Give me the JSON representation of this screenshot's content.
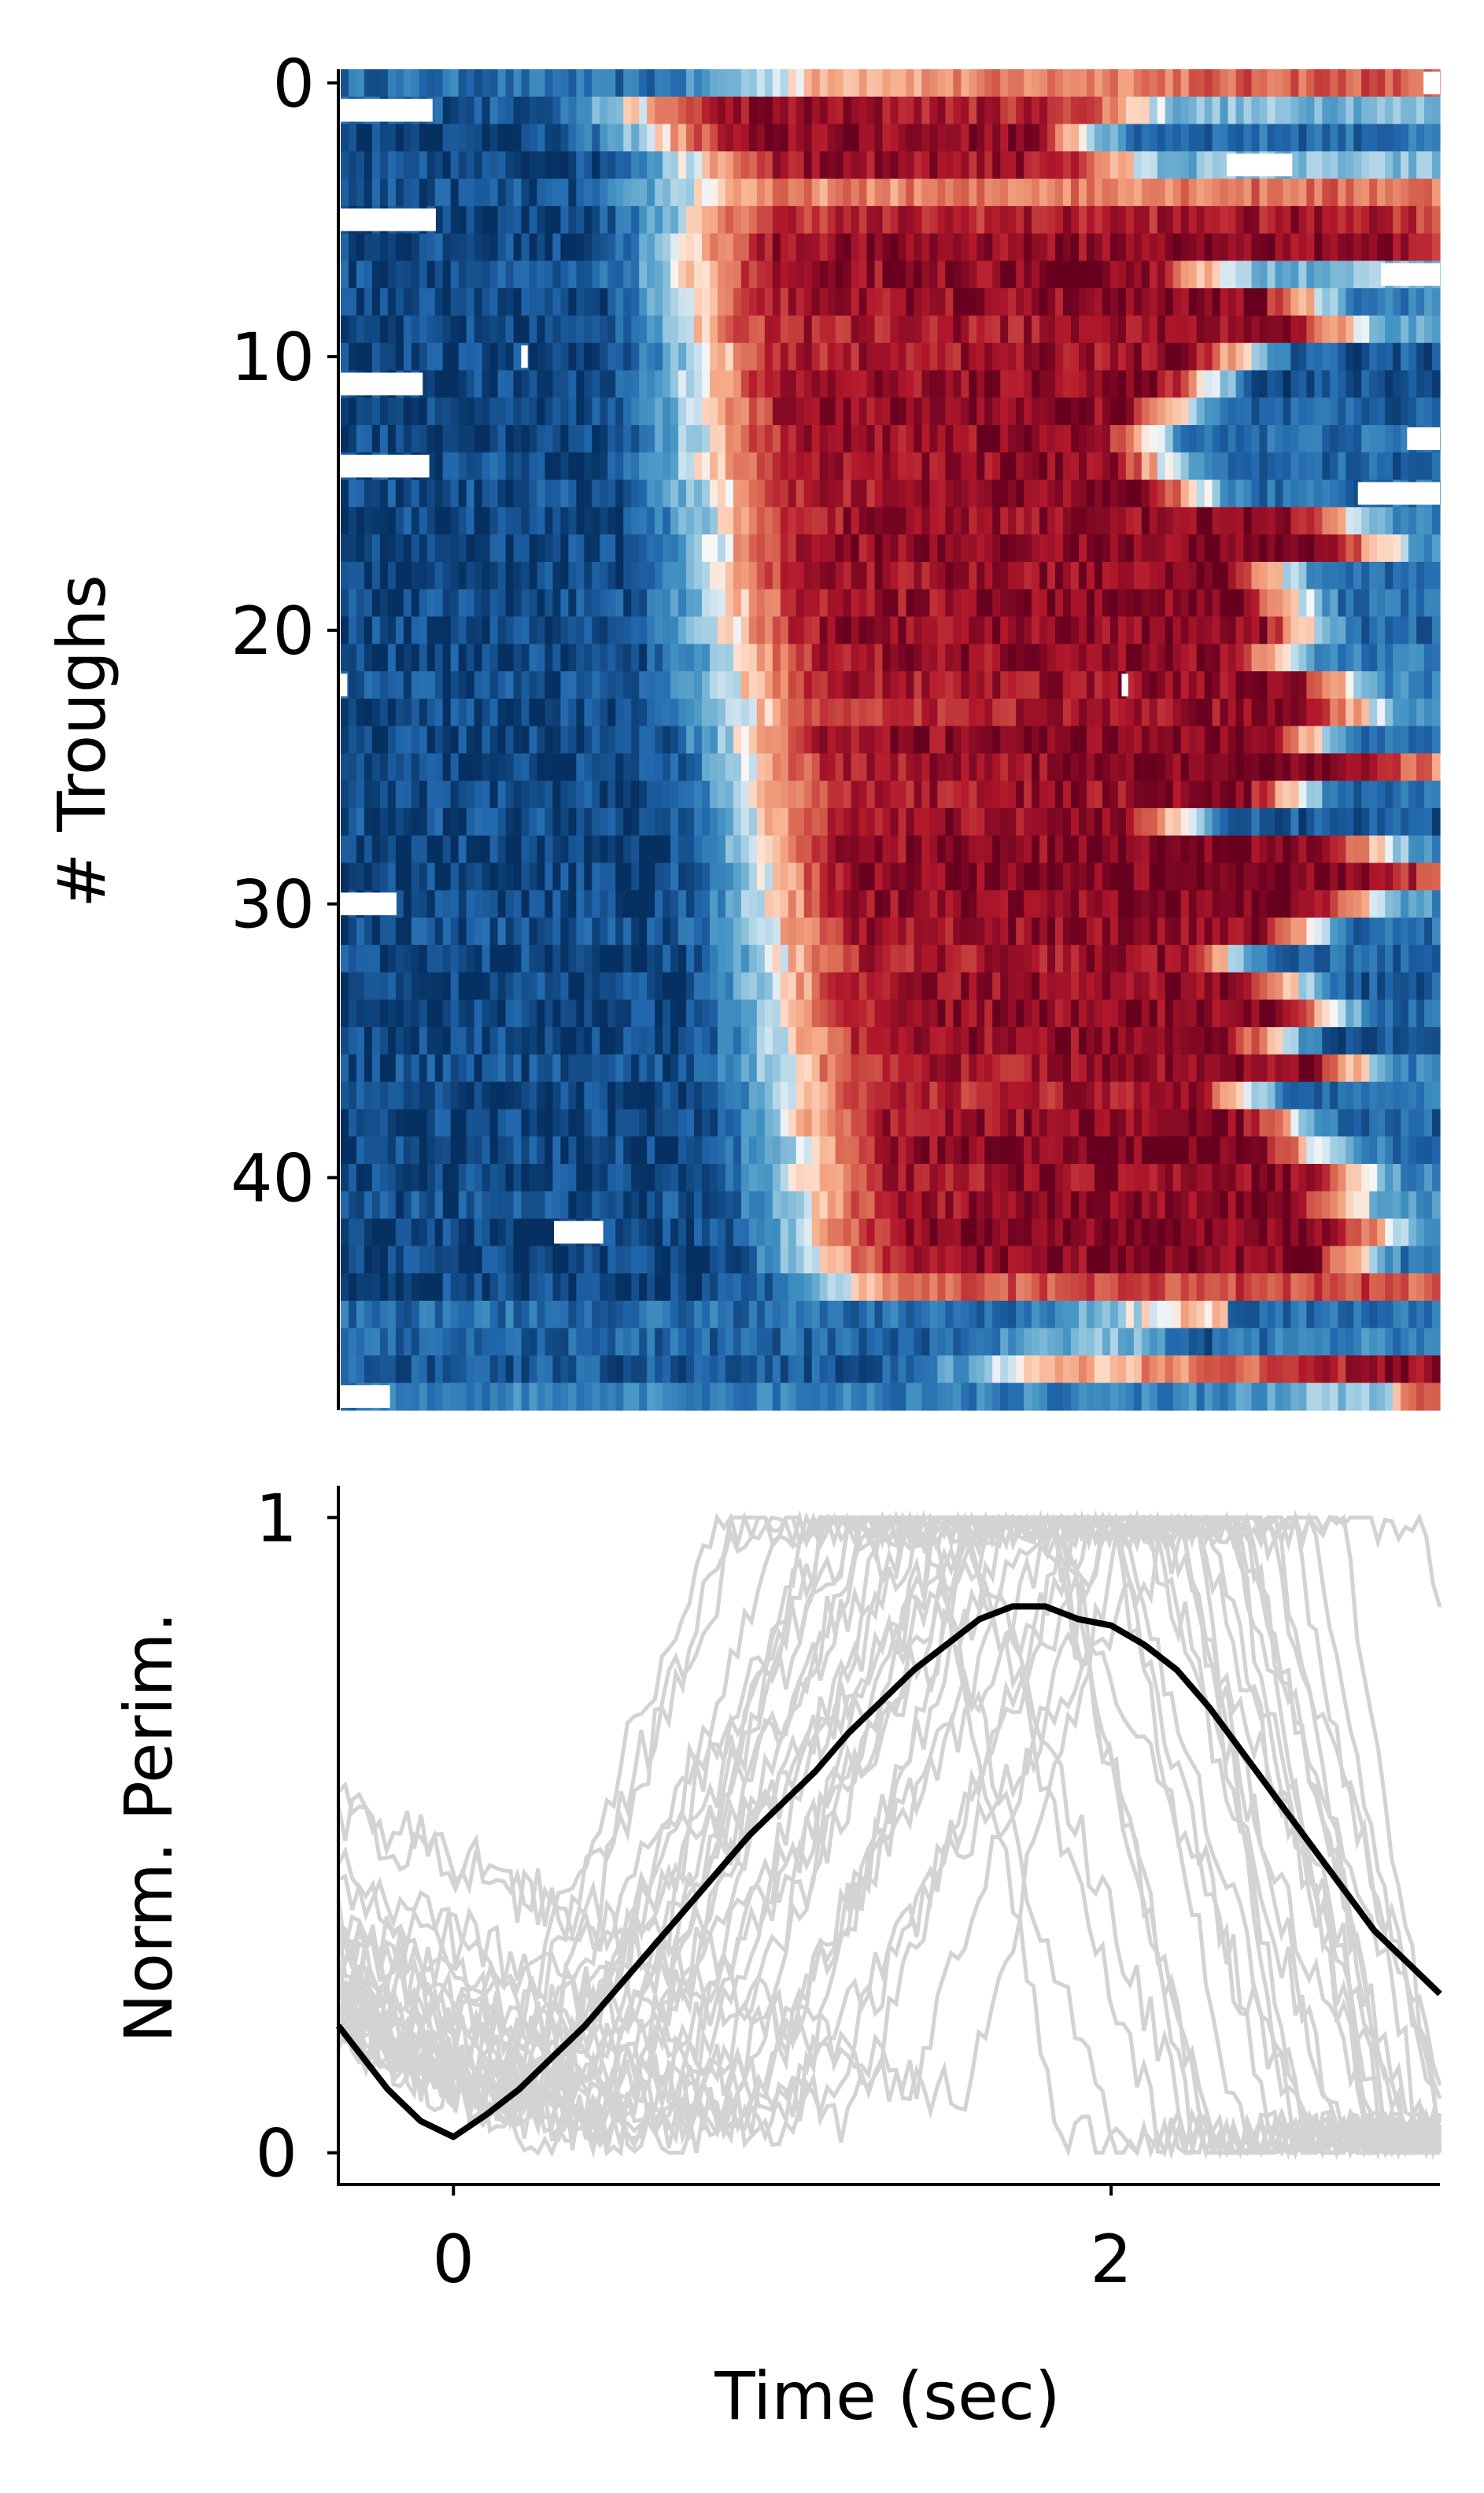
{
  "chart_data": [
    {
      "type": "heatmap",
      "ylabel": "# Troughs",
      "xlabel": "",
      "yticks": [
        "0",
        "10",
        "20",
        "30",
        "40"
      ],
      "ytick_values": [
        0,
        10,
        20,
        30,
        40
      ],
      "ylim": [
        -0.5,
        48.5
      ],
      "xlim": [
        -0.35,
        3.0
      ],
      "n_rows": 49,
      "colormap": "RdBu_r",
      "colors": {
        "low": "#053061",
        "mid": "#f7f7f7",
        "high": "#67001f"
      },
      "rows": [
        {
          "row": 0,
          "onset": 0.9,
          "offset": 2.9,
          "levels": [
            -0.7,
            0.28,
            0.55,
            0.4
          ]
        },
        {
          "row": 1,
          "onset": 0.55,
          "offset": 2.05,
          "levels": [
            -0.8,
            0.85,
            0.7,
            -0.3
          ]
        },
        {
          "row": 2,
          "onset": 0.6,
          "offset": 1.9,
          "levels": [
            -0.9,
            0.85,
            0.9,
            -0.7
          ]
        },
        {
          "row": 3,
          "onset": 0.7,
          "offset": 2.0,
          "levels": [
            -0.9,
            0.8,
            0.8,
            -0.3
          ]
        },
        {
          "row": 4,
          "onset": 0.65,
          "offset": 2.9,
          "levels": [
            -0.85,
            0.35,
            0.45,
            0.4
          ]
        },
        {
          "row": 5,
          "onset": 0.7,
          "offset": 2.95,
          "levels": [
            -0.9,
            0.7,
            0.8,
            0.5
          ]
        },
        {
          "row": 6,
          "onset": 0.7,
          "offset": 2.95,
          "levels": [
            -0.9,
            0.85,
            0.9,
            0.6
          ]
        },
        {
          "row": 7,
          "onset": 0.7,
          "offset": 2.25,
          "levels": [
            -0.85,
            0.8,
            0.95,
            -0.3
          ]
        },
        {
          "row": 8,
          "onset": 0.72,
          "offset": 2.6,
          "levels": [
            -0.9,
            0.8,
            0.9,
            -0.6
          ]
        },
        {
          "row": 9,
          "onset": 0.7,
          "offset": 2.7,
          "levels": [
            -0.9,
            0.75,
            0.85,
            -0.4
          ]
        },
        {
          "row": 10,
          "onset": 0.75,
          "offset": 2.4,
          "levels": [
            -0.9,
            0.75,
            0.85,
            -0.8
          ]
        },
        {
          "row": 11,
          "onset": 0.72,
          "offset": 2.3,
          "levels": [
            -0.9,
            0.8,
            0.9,
            -0.85
          ]
        },
        {
          "row": 12,
          "onset": 0.75,
          "offset": 2.2,
          "levels": [
            -0.9,
            0.85,
            0.9,
            -0.8
          ]
        },
        {
          "row": 13,
          "onset": 0.75,
          "offset": 2.1,
          "levels": [
            -0.9,
            0.8,
            0.9,
            -0.7
          ]
        },
        {
          "row": 14,
          "onset": 0.75,
          "offset": 2.15,
          "levels": [
            -0.85,
            0.8,
            0.9,
            -0.75
          ]
        },
        {
          "row": 15,
          "onset": 0.78,
          "offset": 2.25,
          "levels": [
            -0.85,
            0.75,
            0.95,
            -0.7
          ]
        },
        {
          "row": 16,
          "onset": 0.8,
          "offset": 2.7,
          "levels": [
            -0.9,
            0.8,
            0.9,
            -0.6
          ]
        },
        {
          "row": 17,
          "onset": 0.8,
          "offset": 2.8,
          "levels": [
            -0.9,
            0.85,
            0.95,
            -0.5
          ]
        },
        {
          "row": 18,
          "onset": 0.8,
          "offset": 2.5,
          "levels": [
            -0.9,
            0.8,
            0.9,
            -0.7
          ]
        },
        {
          "row": 19,
          "onset": 0.82,
          "offset": 2.55,
          "levels": [
            -0.85,
            0.8,
            0.95,
            -0.7
          ]
        },
        {
          "row": 20,
          "onset": 0.82,
          "offset": 2.6,
          "levels": [
            -0.9,
            0.85,
            0.9,
            -0.75
          ]
        },
        {
          "row": 21,
          "onset": 0.85,
          "offset": 2.5,
          "levels": [
            -0.9,
            0.8,
            0.9,
            -0.65
          ]
        },
        {
          "row": 22,
          "onset": 0.85,
          "offset": 2.7,
          "levels": [
            -0.85,
            0.75,
            0.9,
            -0.6
          ]
        },
        {
          "row": 23,
          "onset": 0.87,
          "offset": 2.75,
          "levels": [
            -0.9,
            0.7,
            0.85,
            -0.5
          ]
        },
        {
          "row": 24,
          "onset": 0.87,
          "offset": 2.6,
          "levels": [
            -0.9,
            0.85,
            0.95,
            -0.7
          ]
        },
        {
          "row": 25,
          "onset": 0.9,
          "offset": 2.85,
          "levels": [
            -0.9,
            0.8,
            0.95,
            0.3
          ]
        },
        {
          "row": 26,
          "onset": 0.9,
          "offset": 2.55,
          "levels": [
            -0.9,
            0.75,
            0.9,
            -0.75
          ]
        },
        {
          "row": 27,
          "onset": 0.92,
          "offset": 2.2,
          "levels": [
            -0.85,
            0.8,
            0.9,
            -0.8
          ]
        },
        {
          "row": 28,
          "onset": 0.92,
          "offset": 2.8,
          "levels": [
            -0.9,
            0.85,
            0.95,
            -0.6
          ]
        },
        {
          "row": 29,
          "onset": 0.95,
          "offset": 2.9,
          "levels": [
            -0.9,
            0.9,
            0.95,
            0.5
          ]
        },
        {
          "row": 30,
          "onset": 0.95,
          "offset": 2.75,
          "levels": [
            -0.9,
            0.85,
            0.95,
            -0.5
          ]
        },
        {
          "row": 31,
          "onset": 0.95,
          "offset": 2.6,
          "levels": [
            -0.85,
            0.8,
            0.9,
            -0.7
          ]
        },
        {
          "row": 32,
          "onset": 0.97,
          "offset": 2.35,
          "levels": [
            -0.9,
            0.75,
            0.85,
            -0.75
          ]
        },
        {
          "row": 33,
          "onset": 0.97,
          "offset": 2.55,
          "levels": [
            -0.9,
            0.8,
            0.9,
            -0.8
          ]
        },
        {
          "row": 34,
          "onset": 1.0,
          "offset": 2.65,
          "levels": [
            -0.9,
            0.85,
            0.9,
            -0.7
          ]
        },
        {
          "row": 35,
          "onset": 1.0,
          "offset": 2.5,
          "levels": [
            -0.9,
            0.8,
            0.95,
            -0.85
          ]
        },
        {
          "row": 36,
          "onset": 1.0,
          "offset": 2.75,
          "levels": [
            -0.85,
            0.75,
            0.9,
            -0.6
          ]
        },
        {
          "row": 37,
          "onset": 1.02,
          "offset": 2.4,
          "levels": [
            -0.9,
            0.7,
            0.8,
            -0.7
          ]
        },
        {
          "row": 38,
          "onset": 1.02,
          "offset": 2.55,
          "levels": [
            -0.9,
            0.8,
            0.9,
            -0.75
          ]
        },
        {
          "row": 39,
          "onset": 1.05,
          "offset": 2.6,
          "levels": [
            -0.9,
            0.85,
            0.95,
            -0.65
          ]
        },
        {
          "row": 40,
          "onset": 1.05,
          "offset": 2.75,
          "levels": [
            -0.9,
            0.8,
            0.9,
            -0.6
          ]
        },
        {
          "row": 41,
          "onset": 1.07,
          "offset": 2.7,
          "levels": [
            -0.85,
            0.8,
            0.95,
            -0.5
          ]
        },
        {
          "row": 42,
          "onset": 1.07,
          "offset": 2.8,
          "levels": [
            -0.9,
            0.85,
            0.95,
            -0.4
          ]
        },
        {
          "row": 43,
          "onset": 1.1,
          "offset": 2.75,
          "levels": [
            -0.9,
            0.85,
            0.95,
            -0.7
          ]
        },
        {
          "row": 44,
          "onset": 1.15,
          "offset": 2.95,
          "levels": [
            -0.9,
            0.5,
            0.6,
            0.4
          ]
        },
        {
          "row": 45,
          "onset": 2.0,
          "offset": 2.1,
          "levels": [
            -0.7,
            0.2,
            -0.85,
            -0.7
          ]
        },
        {
          "row": 46,
          "onset": 1.7,
          "offset": 2.4,
          "levels": [
            -0.75,
            -0.3,
            -0.8,
            -0.6
          ]
        },
        {
          "row": 47,
          "onset": 1.6,
          "offset": 2.7,
          "levels": [
            -0.8,
            0.2,
            0.6,
            0.85
          ]
        },
        {
          "row": 48,
          "onset": 2.5,
          "offset": 3.0,
          "levels": [
            -0.6,
            -0.2,
            0.2,
            0.85
          ]
        }
      ]
    },
    {
      "type": "line",
      "xlabel": "Time (sec)",
      "ylabel": "Norm. Perim.",
      "xlim": [
        -0.35,
        3.0
      ],
      "ylim": [
        -0.05,
        1.05
      ],
      "xticks": [
        "0",
        "2"
      ],
      "xtick_values": [
        0,
        2
      ],
      "yticks": [
        "0",
        "1"
      ],
      "ytick_values": [
        0,
        1
      ],
      "colors": {
        "mean": "#000000",
        "individual": "#d3d3d3"
      },
      "mean_trace": {
        "x": [
          -0.35,
          -0.2,
          -0.1,
          0.0,
          0.1,
          0.2,
          0.3,
          0.4,
          0.5,
          0.6,
          0.7,
          0.8,
          0.9,
          1.0,
          1.1,
          1.2,
          1.3,
          1.4,
          1.5,
          1.6,
          1.7,
          1.8,
          1.9,
          2.0,
          2.1,
          2.2,
          2.3,
          2.4,
          2.5,
          2.6,
          2.7,
          2.8,
          2.9,
          3.0
        ],
        "y": [
          0.2,
          0.1,
          0.05,
          0.025,
          0.06,
          0.1,
          0.15,
          0.2,
          0.26,
          0.32,
          0.38,
          0.44,
          0.5,
          0.55,
          0.6,
          0.66,
          0.71,
          0.76,
          0.8,
          0.84,
          0.86,
          0.86,
          0.84,
          0.83,
          0.8,
          0.76,
          0.7,
          0.63,
          0.56,
          0.49,
          0.42,
          0.35,
          0.3,
          0.25
        ]
      },
      "individual_traces": [
        {
          "onset": 0.2,
          "peak": 1.0,
          "rise": 0.65,
          "hold": 0.6,
          "fall": 0.4,
          "base": 0.05
        },
        {
          "onset": 0.3,
          "peak": 1.0,
          "rise": 0.7,
          "hold": 0.8,
          "fall": 0.5,
          "base": 0.02
        },
        {
          "onset": 0.1,
          "peak": 1.0,
          "rise": 0.8,
          "hold": 0.5,
          "fall": 0.6,
          "base": 0.08
        },
        {
          "onset": 0.4,
          "peak": 1.0,
          "rise": 0.75,
          "hold": 0.7,
          "fall": 0.4,
          "base": 0.03
        },
        {
          "onset": 0.25,
          "peak": 1.0,
          "rise": 0.9,
          "hold": 0.4,
          "fall": 0.7,
          "base": 0.06
        },
        {
          "onset": 0.5,
          "peak": 1.0,
          "rise": 0.6,
          "hold": 0.9,
          "fall": 0.5,
          "base": 0.01
        },
        {
          "onset": 0.15,
          "peak": 1.0,
          "rise": 1.1,
          "hold": 0.3,
          "fall": 0.6,
          "base": 0.1
        },
        {
          "onset": 0.6,
          "peak": 1.0,
          "rise": 0.8,
          "hold": 0.6,
          "fall": 0.4,
          "base": 0.02
        },
        {
          "onset": 0.35,
          "peak": 1.0,
          "rise": 0.95,
          "hold": 0.5,
          "fall": 0.8,
          "base": 0.04
        },
        {
          "onset": 0.8,
          "peak": 1.0,
          "rise": 0.7,
          "hold": 0.7,
          "fall": 0.5,
          "base": 0.03
        },
        {
          "onset": 0.45,
          "peak": 1.0,
          "rise": 1.0,
          "hold": 0.8,
          "fall": 0.3,
          "base": 0.05
        },
        {
          "onset": 0.2,
          "peak": 1.0,
          "rise": 1.2,
          "hold": 0.4,
          "fall": 0.5,
          "base": 0.07
        },
        {
          "onset": 0.7,
          "peak": 1.0,
          "rise": 0.9,
          "hold": 0.5,
          "fall": 0.6,
          "base": 0.02
        },
        {
          "onset": 0.9,
          "peak": 1.0,
          "rise": 0.8,
          "hold": 0.4,
          "fall": 0.7,
          "base": 0.04
        },
        {
          "onset": 0.3,
          "peak": 1.0,
          "rise": 1.3,
          "hold": 0.6,
          "fall": 0.4,
          "base": 0.06
        },
        {
          "onset": 1.0,
          "peak": 1.0,
          "rise": 0.6,
          "hold": 0.8,
          "fall": 0.5,
          "base": 0.02
        },
        {
          "onset": 0.55,
          "peak": 1.0,
          "rise": 1.1,
          "hold": 0.7,
          "fall": 0.45,
          "base": 0.03
        },
        {
          "onset": 1.2,
          "peak": 1.0,
          "rise": 0.7,
          "hold": 0.5,
          "fall": 0.5,
          "base": 0.05
        },
        {
          "onset": 0.1,
          "peak": 1.0,
          "rise": 0.7,
          "hold": 1.2,
          "fall": 0.6,
          "base": 0.08
        },
        {
          "onset": 0.65,
          "peak": 1.0,
          "rise": 0.85,
          "hold": 1.0,
          "fall": 0.35,
          "base": 0.02
        },
        {
          "onset": 1.4,
          "peak": 1.0,
          "rise": 0.6,
          "hold": 0.6,
          "fall": 0.4,
          "base": 0.1
        },
        {
          "onset": 0.4,
          "peak": 1.0,
          "rise": 1.4,
          "hold": 0.5,
          "fall": 0.5,
          "base": 0.04
        },
        {
          "onset": 0.85,
          "peak": 1.0,
          "rise": 1.0,
          "hold": 0.6,
          "fall": 0.6,
          "base": 0.03
        },
        {
          "onset": 0.5,
          "peak": 1.0,
          "rise": 0.75,
          "hold": 1.1,
          "fall": 0.7,
          "base": 0.02
        },
        {
          "onset": 1.1,
          "peak": 1.0,
          "rise": 0.9,
          "hold": 0.7,
          "fall": 0.3,
          "base": 0.06
        },
        {
          "onset": 0.25,
          "peak": 1.0,
          "rise": 1.0,
          "hold": 0.9,
          "fall": 0.8,
          "base": 0.05
        },
        {
          "onset": 0.75,
          "peak": 1.0,
          "rise": 1.2,
          "hold": 0.4,
          "fall": 0.5,
          "base": 0.03
        },
        {
          "onset": 1.55,
          "peak": 1.0,
          "rise": 0.5,
          "hold": 0.5,
          "fall": 0.4,
          "base": 0.08
        },
        {
          "onset": 0.95,
          "peak": 1.0,
          "rise": 1.3,
          "hold": 0.7,
          "fall": 0.4,
          "base": 0.04
        },
        {
          "onset": 0.15,
          "peak": 1.0,
          "rise": 1.5,
          "hold": 0.6,
          "fall": 0.6,
          "base": 0.06
        }
      ]
    }
  ]
}
